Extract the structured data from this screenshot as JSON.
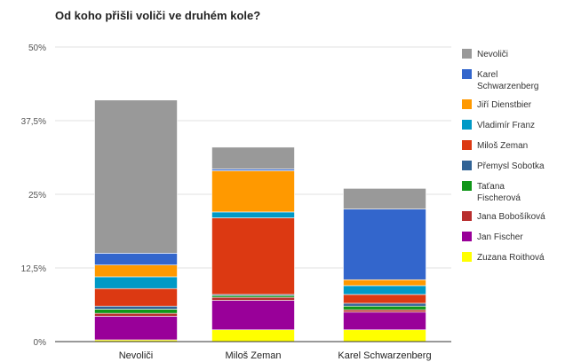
{
  "chart_data": {
    "type": "bar",
    "stacked": true,
    "title": "Od koho přišli voliči ve druhém kole?",
    "categories": [
      "Nevoliči",
      "Miloš Zeman",
      "Karel Schwarzenberg"
    ],
    "ylim": [
      0,
      50
    ],
    "yticks": [
      "0%",
      "12,5%",
      "25%",
      "37,5%",
      "50%"
    ],
    "ytick_values": [
      0,
      12.5,
      25,
      37.5,
      50
    ],
    "grid": true,
    "legend_position": "right",
    "series": [
      {
        "name": "Zuzana Roithová",
        "color": "#ffff00",
        "values": [
          0.3,
          2.0,
          2.0
        ]
      },
      {
        "name": "Jan Fischer",
        "color": "#990099",
        "values": [
          4.0,
          5.0,
          3.0
        ]
      },
      {
        "name": "Jana Bobošíková",
        "color": "#b82e2e",
        "values": [
          0.5,
          0.5,
          0.4
        ]
      },
      {
        "name": "Taťana Fischerová",
        "color": "#109618",
        "values": [
          0.7,
          0.3,
          0.6
        ]
      },
      {
        "name": "Přemysl Sobotka",
        "color": "#316395",
        "values": [
          0.5,
          0.2,
          0.5
        ]
      },
      {
        "name": "Miloš Zeman",
        "color": "#dc3912",
        "values": [
          3.0,
          13.0,
          1.5
        ]
      },
      {
        "name": "Vladimír Franz",
        "color": "#0099c6",
        "values": [
          2.0,
          1.0,
          1.5
        ]
      },
      {
        "name": "Jiří Dienstbier",
        "color": "#ff9900",
        "values": [
          2.0,
          7.0,
          1.0
        ]
      },
      {
        "name": "Karel Schwarzenberg",
        "color": "#3366cc",
        "values": [
          2.0,
          0.3,
          12.0
        ]
      },
      {
        "name": "Nevoliči",
        "color": "#999999",
        "values": [
          26.0,
          3.7,
          3.5
        ]
      }
    ]
  }
}
